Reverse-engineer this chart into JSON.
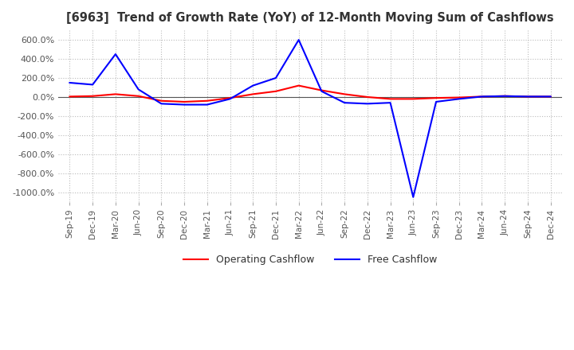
{
  "title": "[6963]  Trend of Growth Rate (YoY) of 12-Month Moving Sum of Cashflows",
  "title_fontsize": 10.5,
  "background_color": "#ffffff",
  "grid_color": "#bbbbbb",
  "x_labels": [
    "Sep-19",
    "Dec-19",
    "Mar-20",
    "Jun-20",
    "Sep-20",
    "Dec-20",
    "Mar-21",
    "Jun-21",
    "Sep-21",
    "Dec-21",
    "Mar-22",
    "Jun-22",
    "Sep-22",
    "Dec-22",
    "Mar-23",
    "Jun-23",
    "Sep-23",
    "Dec-23",
    "Mar-24",
    "Jun-24",
    "Sep-24",
    "Dec-24"
  ],
  "operating_cashflow": [
    5,
    10,
    30,
    10,
    -40,
    -50,
    -40,
    -10,
    30,
    60,
    120,
    70,
    30,
    0,
    -20,
    -20,
    -10,
    -5,
    5,
    10,
    5,
    5
  ],
  "free_cashflow": [
    150,
    130,
    450,
    80,
    -70,
    -80,
    -80,
    -20,
    120,
    200,
    600,
    60,
    -60,
    -70,
    -60,
    -1050,
    -50,
    -20,
    5,
    10,
    5,
    5
  ],
  "operating_color": "#ff0000",
  "free_color": "#0000ff",
  "ylim": [
    -1100,
    700
  ],
  "yticks": [
    -1000,
    -800,
    -600,
    -400,
    -200,
    0,
    200,
    400,
    600
  ]
}
